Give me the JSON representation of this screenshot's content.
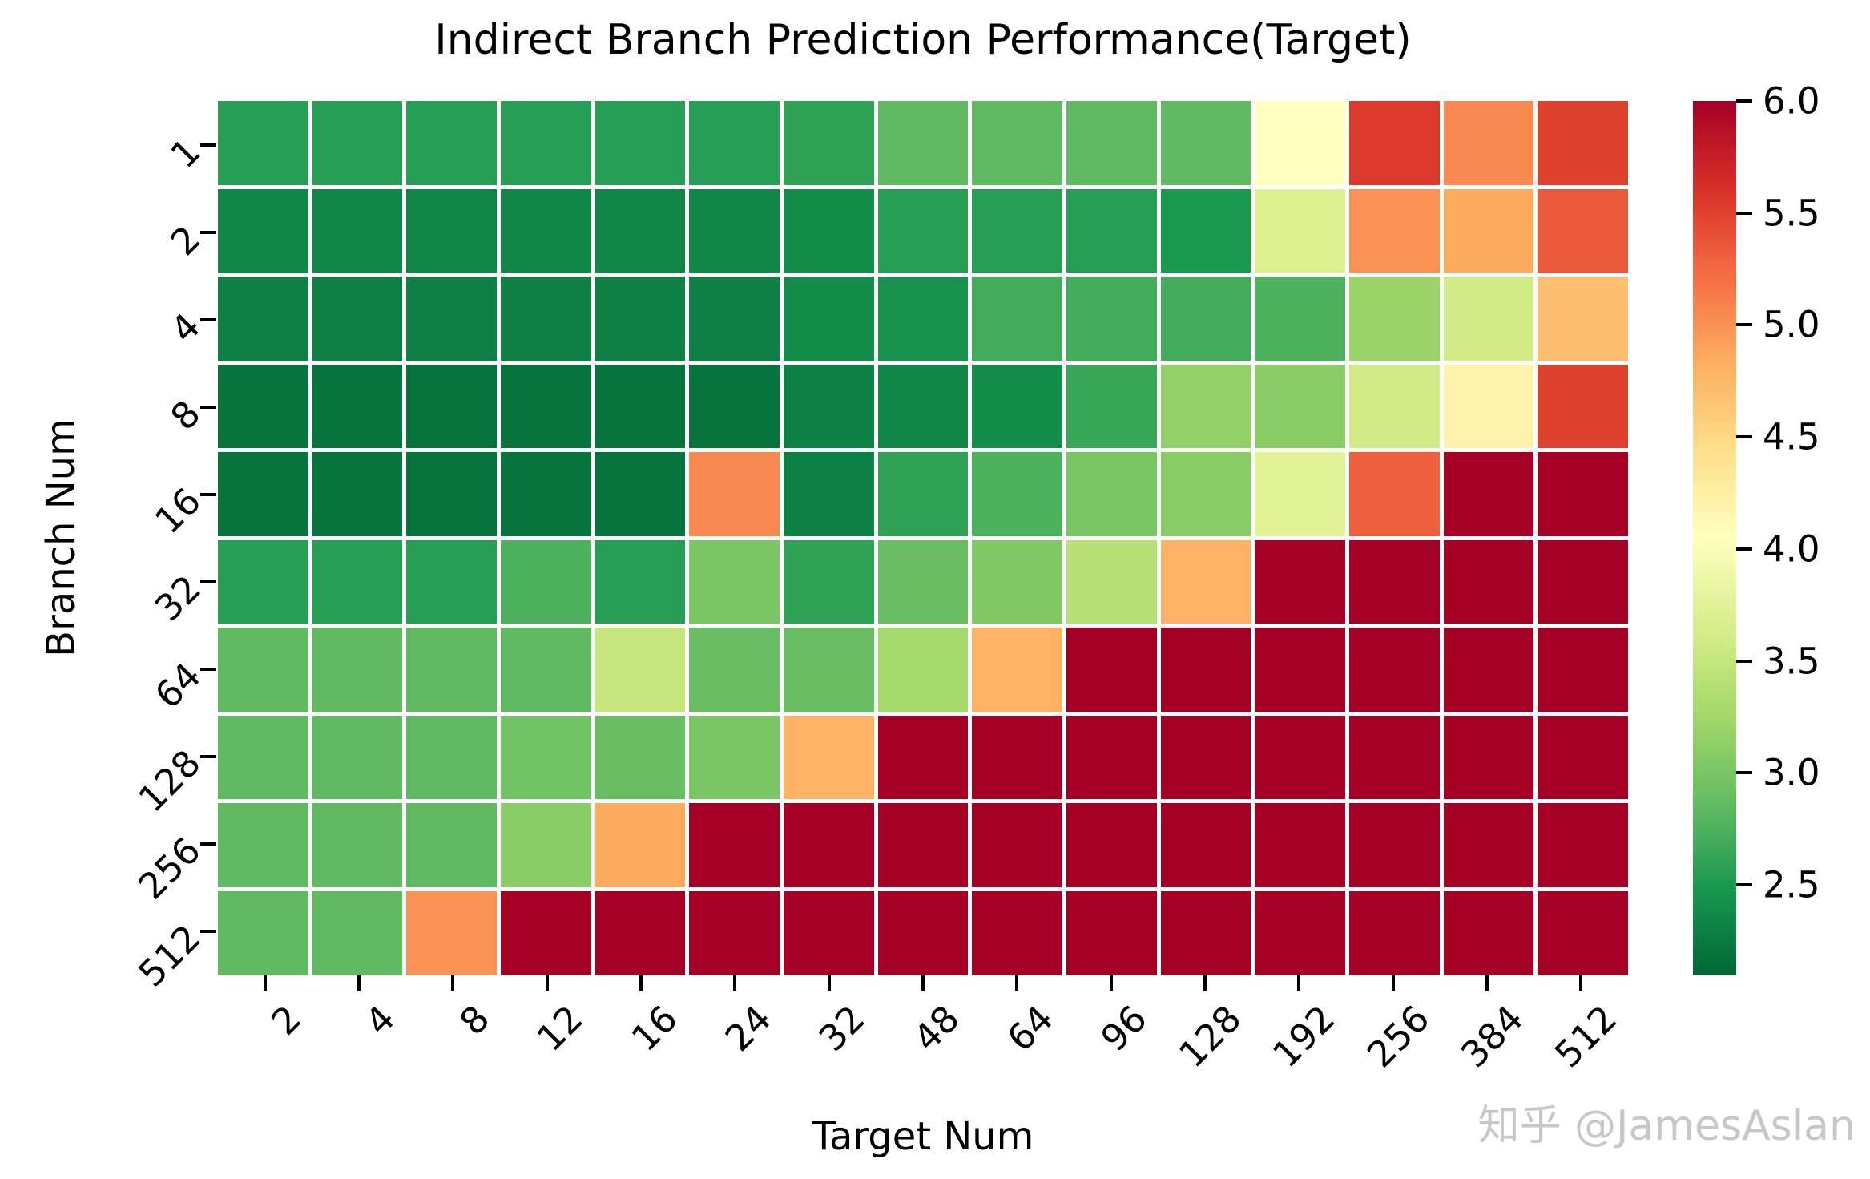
{
  "figure": {
    "watermark": "知乎 @JamesAslan"
  },
  "chart_data": {
    "type": "heatmap",
    "title": "Indirect Branch Prediction Performance(Target)",
    "xlabel": "Target Num",
    "ylabel": "Branch Num",
    "x_categories": [
      "2",
      "4",
      "8",
      "12",
      "16",
      "24",
      "32",
      "48",
      "64",
      "96",
      "128",
      "192",
      "256",
      "384",
      "512"
    ],
    "y_categories": [
      "1",
      "2",
      "4",
      "8",
      "16",
      "32",
      "64",
      "128",
      "256",
      "512"
    ],
    "values": [
      [
        2.55,
        2.55,
        2.55,
        2.55,
        2.55,
        2.55,
        2.6,
        2.85,
        2.85,
        2.85,
        2.85,
        4.05,
        5.55,
        5.05,
        5.5
      ],
      [
        2.35,
        2.35,
        2.35,
        2.35,
        2.35,
        2.35,
        2.4,
        2.55,
        2.55,
        2.55,
        2.5,
        3.7,
        5.0,
        4.85,
        5.35
      ],
      [
        2.3,
        2.3,
        2.3,
        2.3,
        2.3,
        2.3,
        2.4,
        2.45,
        2.7,
        2.7,
        2.7,
        2.75,
        3.2,
        3.6,
        4.7
      ],
      [
        2.2,
        2.2,
        2.2,
        2.2,
        2.2,
        2.2,
        2.3,
        2.35,
        2.4,
        2.65,
        3.15,
        3.1,
        3.6,
        4.2,
        5.5
      ],
      [
        2.2,
        2.2,
        2.2,
        2.2,
        2.2,
        5.05,
        2.3,
        2.6,
        2.75,
        3.0,
        3.1,
        3.75,
        5.3,
        6.0,
        6.0
      ],
      [
        2.55,
        2.55,
        2.55,
        2.75,
        2.55,
        3.0,
        2.6,
        2.9,
        3.05,
        3.4,
        4.8,
        6.0,
        6.0,
        6.0,
        6.0
      ],
      [
        2.85,
        2.85,
        2.85,
        2.85,
        3.5,
        2.9,
        2.9,
        3.25,
        4.8,
        6.0,
        6.0,
        6.0,
        6.0,
        6.0,
        6.0
      ],
      [
        2.85,
        2.85,
        2.85,
        2.95,
        2.9,
        3.0,
        4.8,
        6.0,
        6.0,
        6.0,
        6.0,
        6.0,
        6.0,
        6.0,
        6.0
      ],
      [
        2.85,
        2.85,
        2.85,
        3.1,
        4.85,
        6.0,
        6.0,
        6.0,
        6.0,
        6.0,
        6.0,
        6.0,
        6.0,
        6.0,
        6.0
      ],
      [
        2.85,
        2.85,
        5.0,
        6.0,
        6.0,
        6.0,
        6.0,
        6.0,
        6.0,
        6.0,
        6.0,
        6.0,
        6.0,
        6.0,
        6.0
      ]
    ],
    "vmin": 2.1,
    "vmax": 6.0,
    "colormap_name": "RdYlGn_r",
    "colormap_anchors_top_to_bottom": [
      "#a50026",
      "#d73027",
      "#f46d43",
      "#fdae61",
      "#fee08b",
      "#ffffbf",
      "#d9ef8b",
      "#a6d96a",
      "#66bd63",
      "#1a9850",
      "#006837"
    ],
    "grid_line_color": "#ffffff",
    "colorbar": {
      "position": "right",
      "tick_values": [
        6.0,
        5.5,
        5.0,
        4.5,
        4.0,
        3.5,
        3.0,
        2.5
      ],
      "tick_labels": [
        "6.0",
        "5.5",
        "5.0",
        "4.5",
        "4.0",
        "3.5",
        "3.0",
        "2.5"
      ]
    },
    "legend_position": "none",
    "grid": false
  }
}
